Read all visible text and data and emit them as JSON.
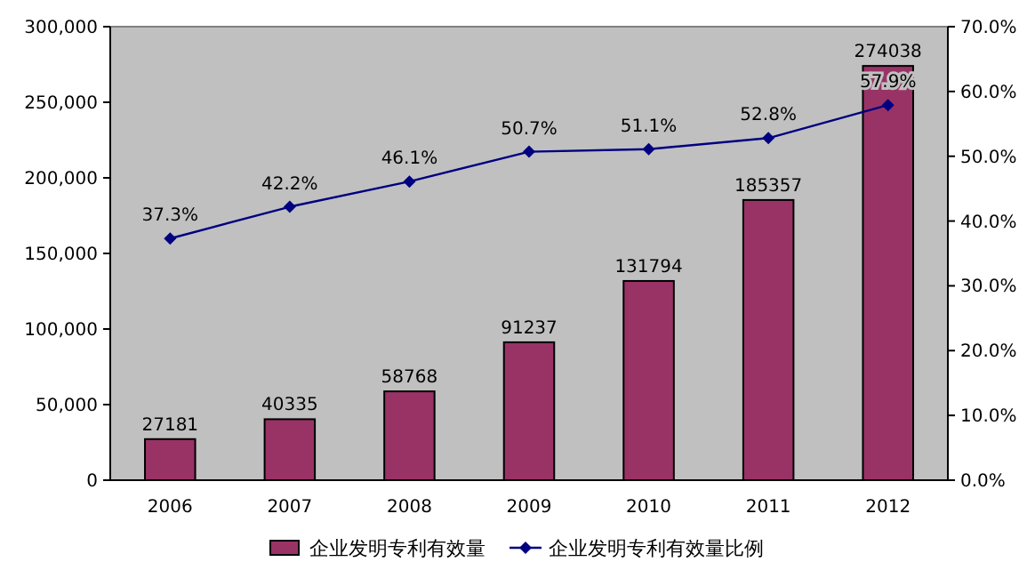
{
  "chart_data": {
    "type": "bar",
    "categories": [
      "2006",
      "2007",
      "2008",
      "2009",
      "2010",
      "2011",
      "2012"
    ],
    "series": [
      {
        "name": "企业发明专利有效量",
        "color": "#993366",
        "values": [
          27181,
          40335,
          58768,
          91237,
          131794,
          185357,
          274038
        ],
        "value_labels": [
          "27181",
          "40335",
          "58768",
          "91237",
          "131794",
          "185357",
          "274038"
        ]
      },
      {
        "name": "企业发明专利有效量比例",
        "type": "line",
        "axis": "y2",
        "color": "#000080",
        "marker": "diamond",
        "values": [
          37.3,
          42.2,
          46.1,
          50.7,
          51.1,
          52.8,
          57.9
        ],
        "value_labels": [
          "37.3%",
          "42.2%",
          "46.1%",
          "50.7%",
          "51.1%",
          "52.8%",
          "57.9%"
        ]
      }
    ],
    "ylim": [
      0,
      300000
    ],
    "yticks": [
      {
        "value": 0,
        "label": "0"
      },
      {
        "value": 50000,
        "label": "50,000"
      },
      {
        "value": 100000,
        "label": "100,000"
      },
      {
        "value": 150000,
        "label": "150,000"
      },
      {
        "value": 200000,
        "label": "200,000"
      },
      {
        "value": 250000,
        "label": "250,000"
      },
      {
        "value": 300000,
        "label": "300,000"
      }
    ],
    "y2lim": [
      0,
      70
    ],
    "y2ticks": [
      {
        "value": 0,
        "label": "0.0%"
      },
      {
        "value": 10,
        "label": "10.0%"
      },
      {
        "value": 20,
        "label": "20.0%"
      },
      {
        "value": 30,
        "label": "30.0%"
      },
      {
        "value": 40,
        "label": "40.0%"
      },
      {
        "value": 50,
        "label": "50.0%"
      },
      {
        "value": 60,
        "label": "60.0%"
      },
      {
        "value": 70,
        "label": "70.0%"
      }
    ],
    "legend": "bottom",
    "grid": false
  }
}
